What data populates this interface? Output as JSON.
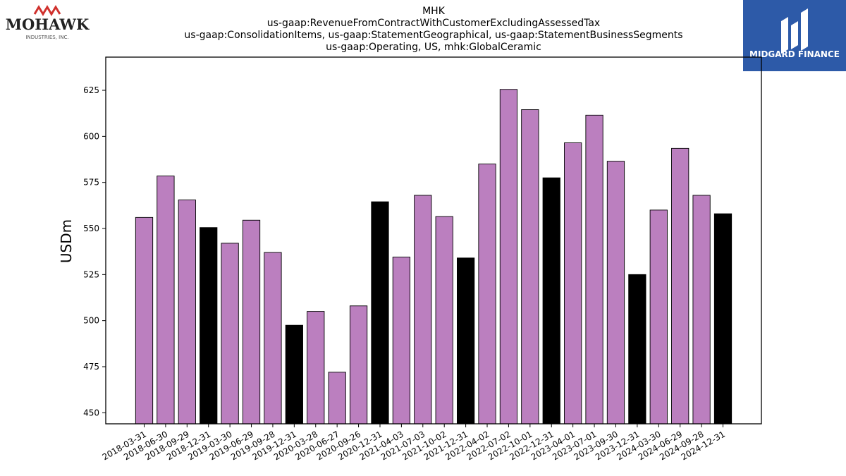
{
  "logos": {
    "left": {
      "name": "MOHAWK",
      "sub": "INDUSTRIES, INC.",
      "color": "#d0312d"
    },
    "right": {
      "name": "MIDGARD FINANCE",
      "bg": "#2d5aa8"
    }
  },
  "chart_data": {
    "type": "bar",
    "title_lines": [
      "MHK",
      "us-gaap:RevenueFromContractWithCustomerExcludingAssessedTax",
      "us-gaap:ConsolidationItems, us-gaap:StatementGeographical, us-gaap:StatementBusinessSegments",
      "us-gaap:Operating, US, mhk:GlobalCeramic"
    ],
    "ylabel": "USDm",
    "ylim": [
      444,
      643
    ],
    "yticks": [
      450,
      475,
      500,
      525,
      550,
      575,
      600,
      625
    ],
    "categories": [
      "2018-03-31",
      "2018-06-30",
      "2018-09-29",
      "2018-12-31",
      "2019-03-30",
      "2019-06-29",
      "2019-09-28",
      "2019-12-31",
      "2020-03-28",
      "2020-06-27",
      "2020-09-26",
      "2020-12-31",
      "2021-04-03",
      "2021-07-03",
      "2021-10-02",
      "2021-12-31",
      "2022-04-02",
      "2022-07-02",
      "2022-10-01",
      "2022-12-31",
      "2023-04-01",
      "2023-07-01",
      "2023-09-30",
      "2023-12-31",
      "2024-03-30",
      "2024-06-29",
      "2024-09-28",
      "2024-12-31"
    ],
    "values": [
      556,
      578.5,
      565.5,
      550.5,
      542,
      554.5,
      537,
      497.5,
      505,
      472,
      508,
      564.5,
      534.5,
      568,
      556.5,
      534,
      585,
      625.5,
      614.5,
      577.5,
      596.5,
      611.5,
      586.5,
      525,
      560,
      593.5,
      568,
      558
    ],
    "year_end": [
      false,
      false,
      false,
      true,
      false,
      false,
      false,
      true,
      false,
      false,
      false,
      true,
      false,
      false,
      false,
      true,
      false,
      false,
      false,
      true,
      false,
      false,
      false,
      true,
      false,
      false,
      false,
      true
    ],
    "colors": {
      "quarter": "#bb7fbf",
      "year_end": "#000000"
    },
    "grid": false,
    "legend": "none"
  }
}
